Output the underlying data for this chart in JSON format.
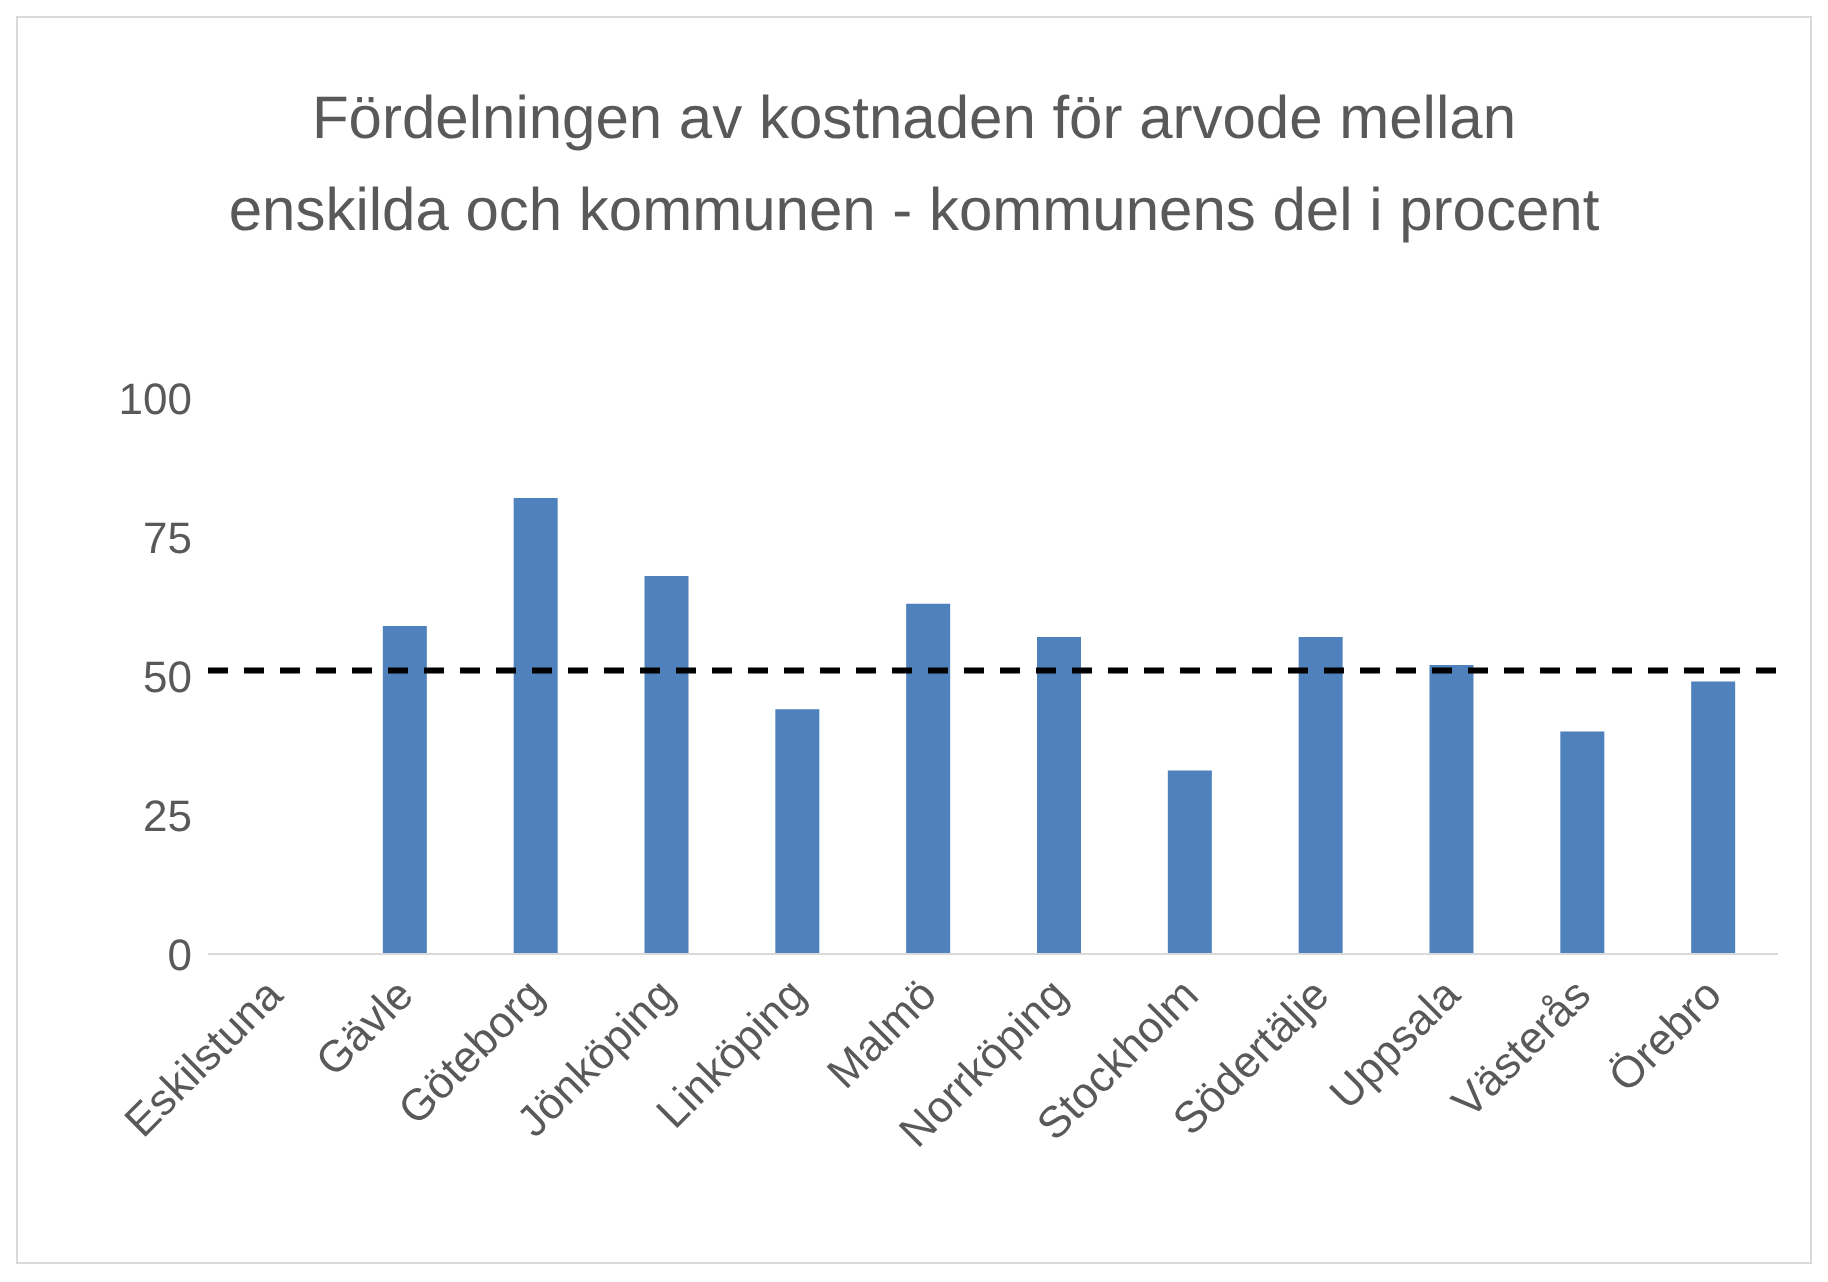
{
  "chart_data": {
    "type": "bar",
    "title": "Fördelningen av kostnaden för arvode mellan enskilda och kommunen - kommunens del i procent",
    "categories": [
      "Eskilstuna",
      "Gävle",
      "Göteborg",
      "Jönköping",
      "Linköping",
      "Malmö",
      "Norrköping",
      "Stockholm",
      "Södertälje",
      "Uppsala",
      "Västerås",
      "Örebro"
    ],
    "values": [
      null,
      59,
      82,
      68,
      44,
      63,
      57,
      33,
      57,
      52,
      40,
      49
    ],
    "color": "#4f81bd",
    "ylim": [
      0,
      100
    ],
    "yticks": [
      0,
      25,
      50,
      75,
      100
    ],
    "grid": false,
    "ref_lines": [
      {
        "axis": "y",
        "value": 51,
        "color": "#000000",
        "line_style": "dashed"
      }
    ]
  }
}
